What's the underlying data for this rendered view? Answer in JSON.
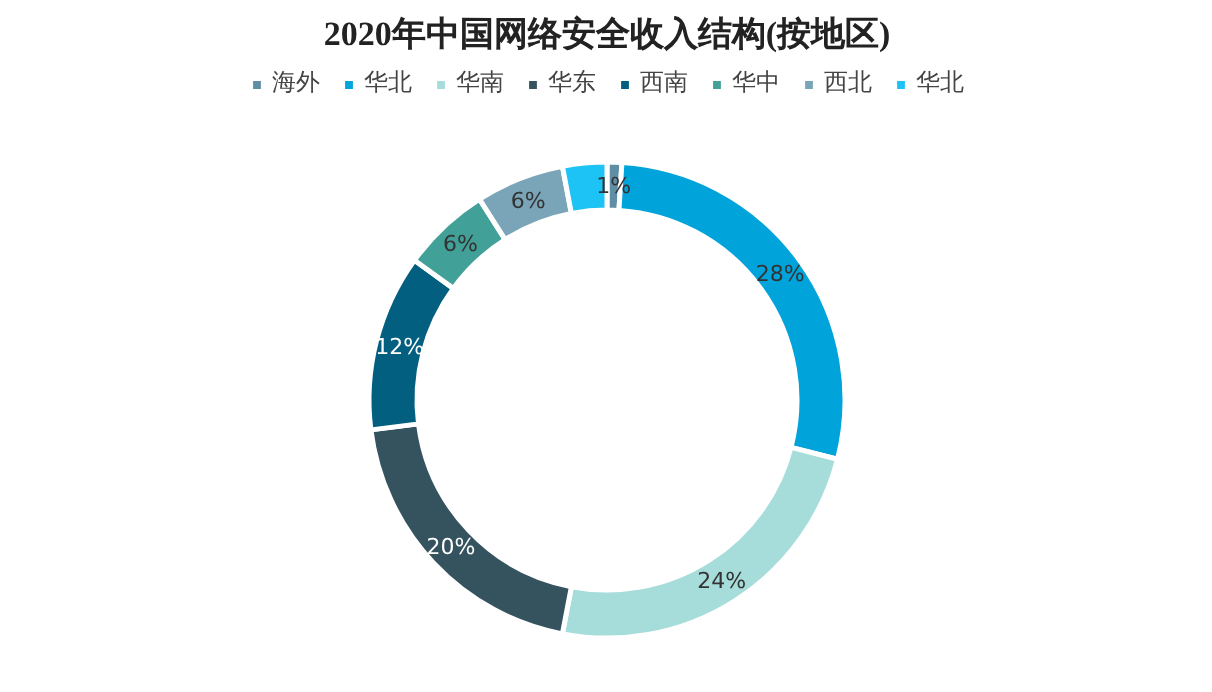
{
  "chart_data": {
    "type": "donut",
    "title": "2020年中国网络安全收入结构(按地区)",
    "categories": [
      "海外",
      "华北",
      "华南",
      "华东",
      "西南",
      "华中",
      "西北",
      "华北"
    ],
    "values": [
      1,
      28,
      24,
      20,
      12,
      6,
      6,
      3
    ],
    "value_labels": [
      "1%",
      "28%",
      "24%",
      "20%",
      "12%",
      "6%",
      "6%",
      null
    ],
    "colors": [
      "#5f8ea5",
      "#00a3da",
      "#a6dcd9",
      "#35535f",
      "#035f7f",
      "#41a097",
      "#7aa5b8",
      "#1ec3f5"
    ],
    "legend": "top"
  }
}
